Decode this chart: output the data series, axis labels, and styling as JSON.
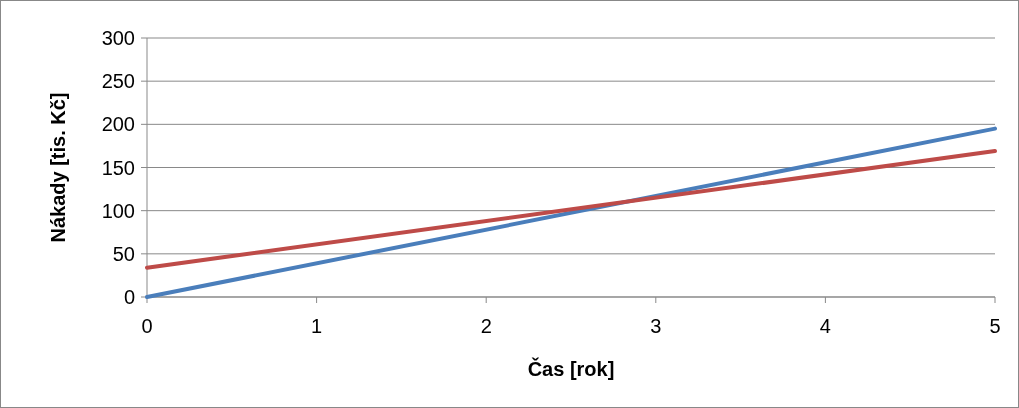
{
  "chart_data": {
    "type": "line",
    "xlabel": "Čas [rok]",
    "ylabel": "Nákady [tis. Kč]",
    "x": [
      0,
      5
    ],
    "xlim": [
      0,
      5
    ],
    "xticks": [
      0,
      1,
      2,
      3,
      4,
      5
    ],
    "ylim": [
      0,
      300
    ],
    "yticks": [
      0,
      50,
      100,
      150,
      200,
      250,
      300
    ],
    "grid": "y",
    "marker": "none",
    "line_style": "solid",
    "series": [
      {
        "color": "#4a7ebb",
        "values": [
          0,
          195
        ]
      },
      {
        "color": "#be4b48",
        "values": [
          34,
          169
        ]
      }
    ]
  }
}
